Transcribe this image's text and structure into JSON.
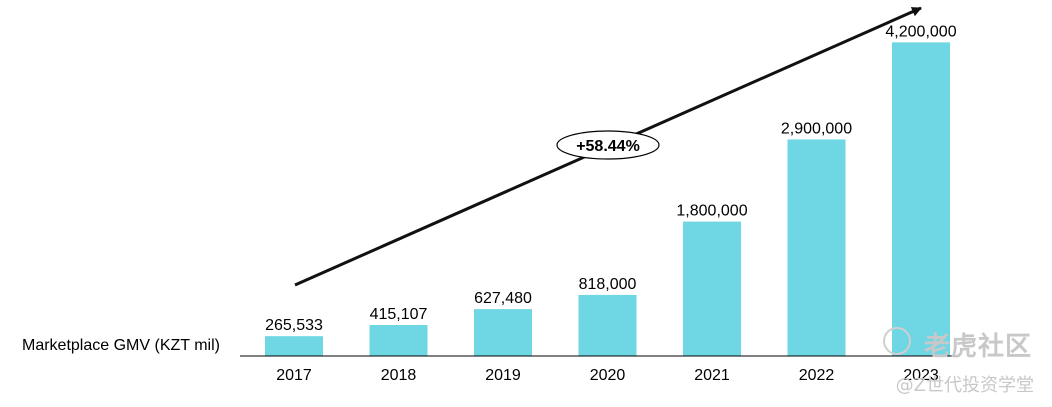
{
  "chart_data": {
    "type": "bar",
    "categories": [
      "2017",
      "2018",
      "2019",
      "2020",
      "2021",
      "2022",
      "2023"
    ],
    "values": [
      265533,
      415107,
      627480,
      818000,
      1800000,
      2900000,
      4200000
    ],
    "value_labels": [
      "265,533",
      "415,107",
      "627,480",
      "818,000",
      "1,800,000",
      "2,900,000",
      "4,200,000"
    ],
    "row_label": "Marketplace GMV (KZT mil)",
    "ylim": [
      0,
      4700000
    ],
    "grid": false,
    "legend": "none",
    "annotation": "+58.44%",
    "bar_color": "#6fd6e3"
  },
  "watermark": {
    "line1": "老虎社区",
    "line2": "@Z世代投资学堂"
  }
}
